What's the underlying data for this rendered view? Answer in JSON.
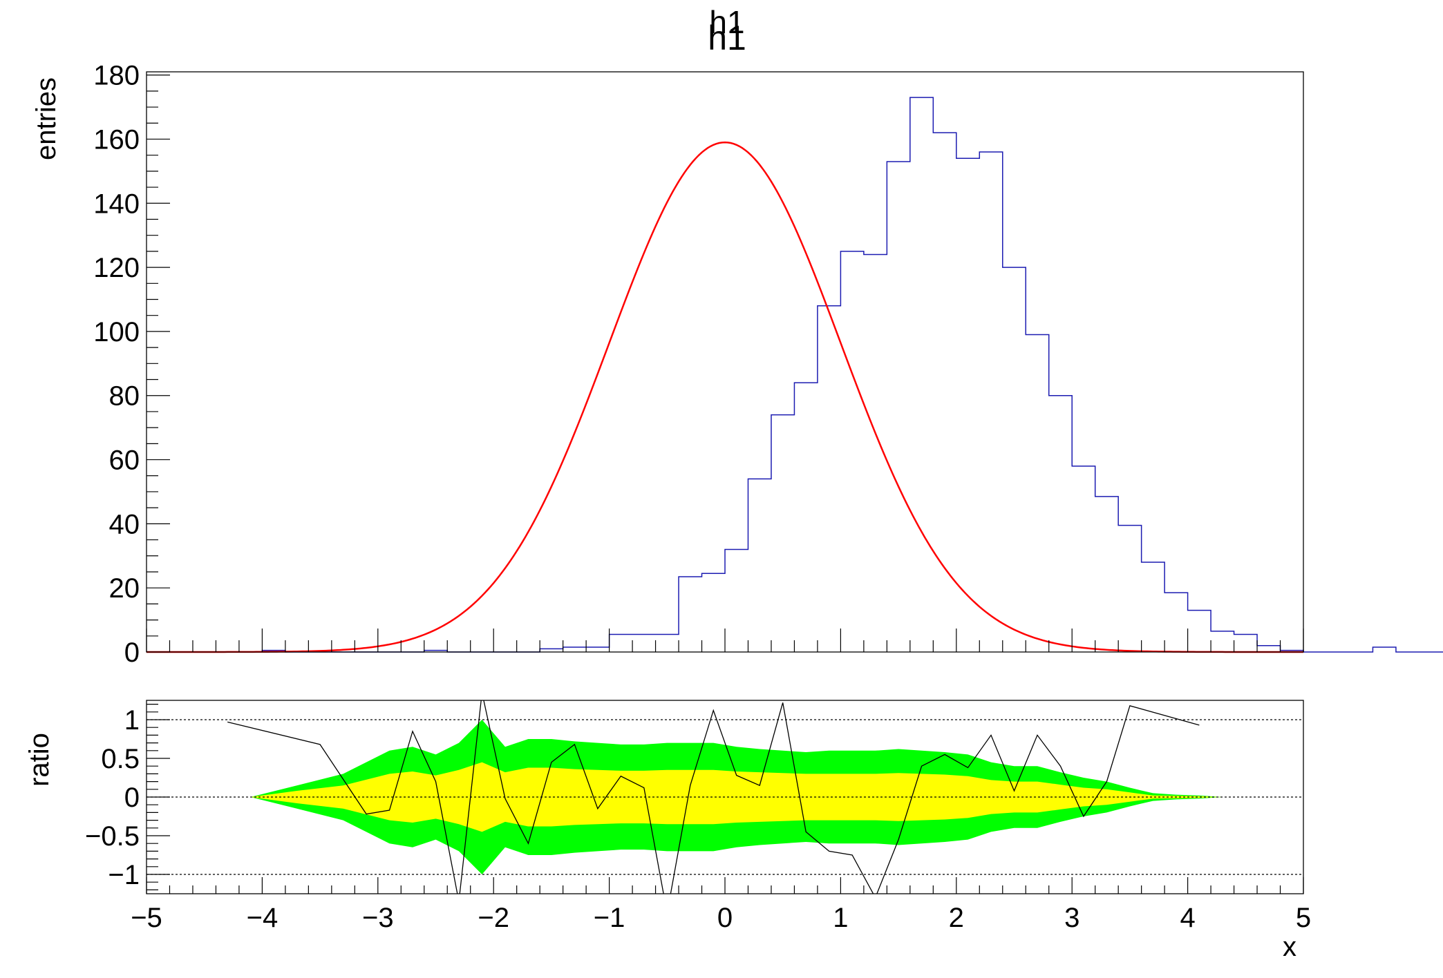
{
  "chart_data": [
    {
      "type": "histogram",
      "title": "h1",
      "xlabel": "",
      "ylabel": "entries",
      "xlim": [
        -5,
        5
      ],
      "ylim": [
        0,
        181
      ],
      "yticks": [
        0,
        20,
        40,
        60,
        80,
        100,
        120,
        140,
        160,
        180
      ],
      "bin_width": 0.2,
      "bin_edges_start": -5,
      "series": [
        {
          "color": "#1b1bb1",
          "style": "step",
          "values": [
            0,
            0,
            0,
            0,
            0,
            0.5,
            0,
            0,
            0,
            0,
            0,
            0,
            0.5,
            0,
            0,
            0,
            0,
            1,
            1.5,
            1.5,
            5.5,
            5.5,
            5.5,
            23.5,
            24.5,
            32,
            54,
            74,
            84,
            108,
            125,
            124,
            153,
            173,
            162,
            154,
            156,
            120,
            99,
            80,
            58,
            48.5,
            39.5,
            28,
            18.5,
            13,
            6.5,
            5.5,
            2,
            0.5,
            0,
            0,
            0,
            1.5,
            0,
            0,
            0,
            0,
            0,
            0.5,
            0,
            0,
            0,
            0,
            0,
            0
          ]
        },
        {
          "color": "#ff0000",
          "style": "gaussian-fit",
          "amplitude": 159,
          "mean": 0,
          "sigma": 1
        }
      ]
    },
    {
      "type": "line",
      "xlabel": "x",
      "ylabel": "ratio",
      "xlim": [
        -5,
        5
      ],
      "ylim": [
        -1.25,
        1.25
      ],
      "yticks": [
        -1,
        -0.5,
        0,
        0.5,
        1
      ],
      "ytick_labels": [
        "−1",
        "−0.5",
        "0",
        "0.5",
        "1"
      ],
      "xticks": [
        -5,
        -4,
        -3,
        -2,
        -1,
        0,
        1,
        2,
        3,
        4,
        5
      ],
      "xtick_labels": [
        "−5",
        "−4",
        "−3",
        "−2",
        "−1",
        "0",
        "1",
        "2",
        "3",
        "4",
        "5"
      ],
      "reference_lines": [
        -1,
        0,
        1
      ],
      "bands": {
        "x": [
          -4.1,
          -3.7,
          -3.3,
          -2.9,
          -2.7,
          -2.5,
          -2.3,
          -2.1,
          -1.9,
          -1.7,
          -1.5,
          -1.3,
          -1.1,
          -0.9,
          -0.7,
          -0.5,
          -0.3,
          -0.1,
          0.1,
          0.3,
          0.5,
          0.7,
          0.9,
          1.1,
          1.3,
          1.5,
          1.7,
          1.9,
          2.1,
          2.3,
          2.5,
          2.7,
          2.9,
          3.1,
          3.3,
          3.5,
          3.7,
          3.9,
          4.1,
          4.3
        ],
        "green_sigma2": [
          0,
          0.15,
          0.3,
          0.6,
          0.65,
          0.55,
          0.7,
          1.0,
          0.65,
          0.75,
          0.75,
          0.72,
          0.7,
          0.68,
          0.68,
          0.7,
          0.7,
          0.7,
          0.65,
          0.62,
          0.6,
          0.58,
          0.6,
          0.6,
          0.6,
          0.62,
          0.6,
          0.58,
          0.55,
          0.45,
          0.4,
          0.4,
          0.32,
          0.25,
          0.2,
          0.12,
          0.05,
          0.03,
          0.02,
          0
        ],
        "yellow_sigma1": [
          0,
          0.08,
          0.15,
          0.3,
          0.33,
          0.28,
          0.35,
          0.45,
          0.32,
          0.38,
          0.38,
          0.36,
          0.35,
          0.34,
          0.34,
          0.35,
          0.35,
          0.35,
          0.33,
          0.32,
          0.31,
          0.3,
          0.3,
          0.3,
          0.3,
          0.31,
          0.3,
          0.29,
          0.27,
          0.22,
          0.2,
          0.2,
          0.16,
          0.12,
          0.1,
          0.06,
          0.02,
          0.015,
          0.01,
          0
        ]
      },
      "series": [
        {
          "color": "#000000",
          "x": [
            -4.3,
            -3.5,
            -3.1,
            -2.9,
            -2.7,
            -2.5,
            -2.3,
            -2.1,
            -1.9,
            -1.7,
            -1.5,
            -1.3,
            -1.1,
            -0.9,
            -0.7,
            -0.5,
            -0.3,
            -0.1,
            0.1,
            0.3,
            0.5,
            0.7,
            0.9,
            1.1,
            1.3,
            1.5,
            1.7,
            1.9,
            2.1,
            2.3,
            2.5,
            2.7,
            2.9,
            3.1,
            3.3,
            3.5,
            4.1
          ],
          "values": [
            0.97,
            0.68,
            -0.22,
            -0.17,
            0.85,
            0.2,
            -1.35,
            1.35,
            -0.02,
            -0.6,
            0.45,
            0.68,
            -0.15,
            0.27,
            0.12,
            -1.5,
            0.15,
            1.12,
            0.28,
            0.15,
            1.22,
            -0.45,
            -0.7,
            -0.75,
            -1.3,
            -0.55,
            0.4,
            0.55,
            0.38,
            0.8,
            0.08,
            0.8,
            0.4,
            -0.25,
            0.2,
            1.18,
            0.93
          ]
        }
      ]
    }
  ]
}
